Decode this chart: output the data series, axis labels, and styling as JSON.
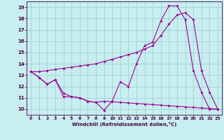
{
  "xlabel": "Windchill (Refroidissement éolien,°C)",
  "bg_color": "#c8eef0",
  "line_color": "#990099",
  "grid_color": "#99cccc",
  "axis_color": "#440044",
  "xmin": -0.5,
  "xmax": 23.5,
  "ymin": 9.5,
  "ymax": 19.5,
  "line1_x": [
    0,
    1,
    2,
    3,
    4,
    5,
    6,
    7,
    8,
    9,
    10,
    11,
    12,
    13,
    14,
    15,
    16,
    17,
    18,
    19,
    20,
    21,
    22,
    23
  ],
  "line1_y": [
    13.3,
    12.8,
    12.2,
    12.6,
    11.1,
    11.1,
    11.0,
    10.7,
    10.6,
    9.9,
    10.7,
    12.4,
    12.0,
    14.0,
    15.6,
    15.9,
    17.8,
    19.1,
    19.1,
    17.9,
    13.4,
    11.5,
    10.0,
    10.0
  ],
  "line2_x": [
    0,
    1,
    2,
    3,
    4,
    5,
    6,
    7,
    8,
    9,
    10,
    11,
    12,
    13,
    14,
    15,
    16,
    17,
    18,
    19,
    20,
    21,
    22,
    23
  ],
  "line2_y": [
    13.3,
    12.8,
    12.2,
    12.6,
    11.4,
    11.1,
    11.0,
    10.7,
    10.6,
    10.7,
    10.65,
    10.6,
    10.55,
    10.5,
    10.45,
    10.4,
    10.35,
    10.3,
    10.25,
    10.2,
    10.15,
    10.1,
    10.05,
    10.0
  ],
  "line3_x": [
    0,
    1,
    2,
    3,
    4,
    5,
    6,
    7,
    8,
    9,
    10,
    11,
    12,
    13,
    14,
    15,
    16,
    17,
    18,
    19,
    20,
    21,
    22,
    23
  ],
  "line3_y": [
    13.3,
    13.3,
    13.4,
    13.5,
    13.6,
    13.7,
    13.8,
    13.9,
    14.0,
    14.2,
    14.4,
    14.6,
    14.8,
    15.0,
    15.3,
    15.6,
    16.5,
    17.5,
    18.3,
    18.5,
    17.9,
    13.4,
    11.5,
    10.0
  ],
  "xticks": [
    0,
    1,
    2,
    3,
    4,
    5,
    6,
    7,
    8,
    9,
    10,
    11,
    12,
    13,
    14,
    15,
    16,
    17,
    18,
    19,
    20,
    21,
    22,
    23
  ],
  "yticks": [
    10,
    11,
    12,
    13,
    14,
    15,
    16,
    17,
    18,
    19
  ],
  "marker_size": 2.0,
  "line_width": 0.8,
  "tick_fontsize": 4.5,
  "xlabel_fontsize": 5.0
}
